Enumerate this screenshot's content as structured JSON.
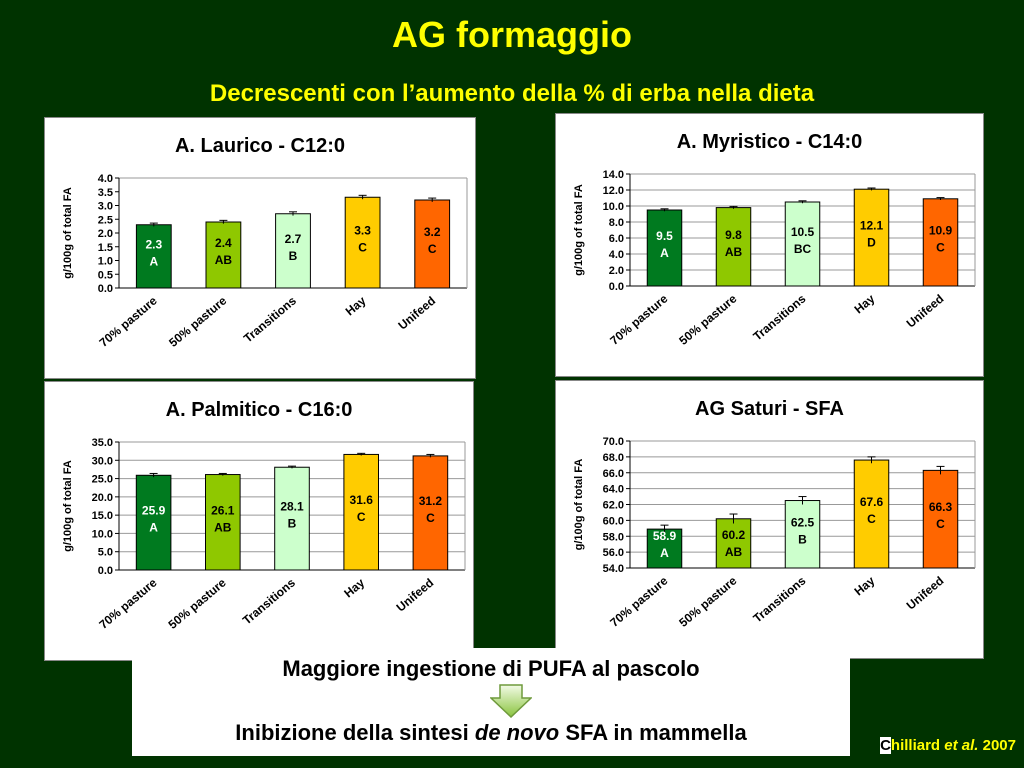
{
  "title": "AG formaggio",
  "subtitle": "Decrescenti con l’aumento della % di erba nella dieta",
  "colors": {
    "background": "#003300",
    "title": "#ffff00",
    "bars": [
      "#007a1f",
      "#8fc800",
      "#ccffcc",
      "#ffcc00",
      "#ff6600"
    ]
  },
  "chart_data": [
    {
      "type": "bar",
      "title": "A. Laurico - C12:0",
      "ylabel": "g/100g of total FA",
      "categories": [
        "70% pasture",
        "50% pasture",
        "Transitions",
        "Hay",
        "Unifeed"
      ],
      "values": [
        2.3,
        2.4,
        2.7,
        3.3,
        3.2
      ],
      "value_labels": [
        "2.3",
        "2.4",
        "2.7",
        "3.3",
        "3.2"
      ],
      "letters": [
        "A",
        "AB",
        "B",
        "C",
        "C"
      ],
      "errors": [
        0.06,
        0.06,
        0.07,
        0.07,
        0.07
      ],
      "ylim": [
        0,
        4
      ],
      "yticks": [
        "0.0",
        "0.5",
        "1.0",
        "1.5",
        "2.0",
        "2.5",
        "3.0",
        "3.5",
        "4.0"
      ],
      "grid": false
    },
    {
      "type": "bar",
      "title": "A. Myristico - C14:0",
      "ylabel": "g/100g of total FA",
      "categories": [
        "70% pasture",
        "50% pasture",
        "Transitions",
        "Hay",
        "Unifeed"
      ],
      "values": [
        9.5,
        9.8,
        10.5,
        12.1,
        10.9
      ],
      "value_labels": [
        "9.5",
        "9.8",
        "10.5",
        "12.1",
        "10.9"
      ],
      "letters": [
        "A",
        "AB",
        "BC",
        "D",
        "C"
      ],
      "errors": [
        0.15,
        0.15,
        0.15,
        0.15,
        0.15
      ],
      "ylim": [
        0,
        14
      ],
      "yticks": [
        "0.0",
        "2.0",
        "4.0",
        "6.0",
        "8.0",
        "10.0",
        "12.0",
        "14.0"
      ],
      "grid": true
    },
    {
      "type": "bar",
      "title": "A. Palmitico - C16:0",
      "ylabel": "g/100g of total FA",
      "categories": [
        "70% pasture",
        "50% pasture",
        "Transitions",
        "Hay",
        "Unifeed"
      ],
      "values": [
        25.9,
        26.1,
        28.1,
        31.6,
        31.2
      ],
      "value_labels": [
        "25.9",
        "26.1",
        "28.1",
        "31.6",
        "31.2"
      ],
      "letters": [
        "A",
        "AB",
        "B",
        "C",
        "C"
      ],
      "errors": [
        0.5,
        0.3,
        0.3,
        0.3,
        0.4
      ],
      "ylim": [
        0,
        35
      ],
      "yticks": [
        "0.0",
        "5.0",
        "10.0",
        "15.0",
        "20.0",
        "25.0",
        "30.0",
        "35.0"
      ],
      "grid": true
    },
    {
      "type": "bar",
      "title": "AG Saturi - SFA",
      "ylabel": "g/100g of total FA",
      "categories": [
        "70% pasture",
        "50% pasture",
        "Transitions",
        "Hay",
        "Unifeed"
      ],
      "values": [
        58.9,
        60.2,
        62.5,
        67.6,
        66.3
      ],
      "value_labels": [
        "58.9",
        "60.2",
        "62.5",
        "67.6",
        "66.3"
      ],
      "letters": [
        "A",
        "AB",
        "B",
        "C",
        "C"
      ],
      "errors": [
        0.5,
        0.6,
        0.5,
        0.4,
        0.5
      ],
      "ylim": [
        54,
        70
      ],
      "yticks": [
        "54.0",
        "56.0",
        "58.0",
        "60.0",
        "62.0",
        "64.0",
        "66.0",
        "68.0",
        "70.0"
      ],
      "grid": true
    }
  ],
  "bottom": {
    "line1": "Maggiore ingestione di PUFA al pascolo",
    "line2_pre": "Inibizione della sintesi ",
    "line2_italic": "de novo",
    "line2_post": " SFA in mammella",
    "arrow_icon": "down-arrow-icon"
  },
  "citation": {
    "first_letter": "C",
    "rest": "hilliard ",
    "italic": "et al.",
    "year": " 2007"
  }
}
